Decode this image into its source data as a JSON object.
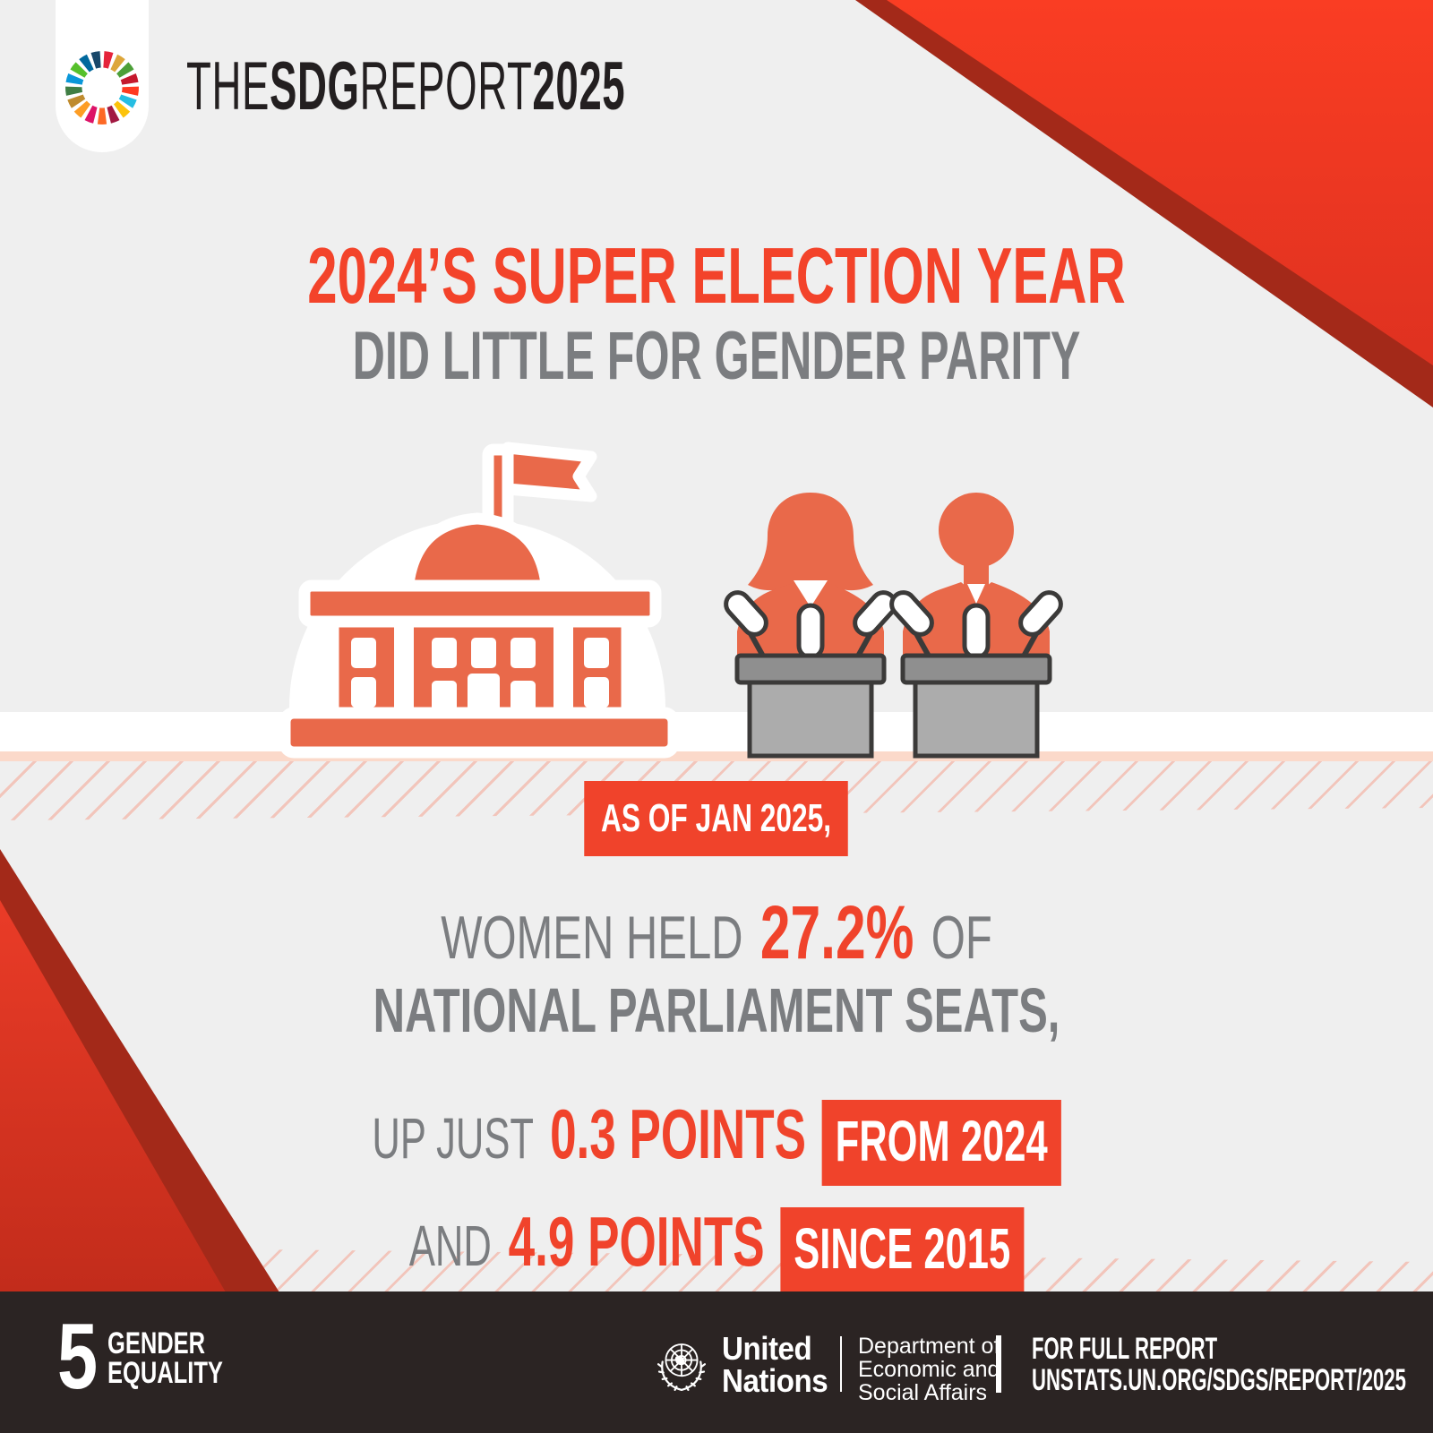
{
  "colors": {
    "accent": "#F0432B",
    "title_red": "#F3432A",
    "gray": "#7B7D80",
    "orange": "#E9694A",
    "bar": "#2B2423",
    "maroon": "#A32919",
    "podium_top": "#8F8F8F",
    "podium_body": "#ACACAC",
    "podium_outline": "#3B3A39",
    "pink_strip": "#FBD9CA",
    "hatch_line": "#F2C5BB",
    "background": "#EFEFEF"
  },
  "logo": {
    "brand_the": "THE",
    "brand_sdg": "SDG",
    "brand_report": "REPORT",
    "brand_year": "2025",
    "sdg_wheel_colors": [
      "#E5243B",
      "#DDA63A",
      "#4C9F38",
      "#C5192D",
      "#FF3A21",
      "#26BDE2",
      "#FCC30B",
      "#A21942",
      "#FD6925",
      "#DD1367",
      "#FD9D24",
      "#BF8B2E",
      "#3F7E44",
      "#0A97D9",
      "#56C02B",
      "#00689D",
      "#19486A"
    ]
  },
  "title": {
    "line1": "2024’S SUPER ELECTION YEAR",
    "line2": "DID LITTLE FOR GENDER PARITY"
  },
  "badge": {
    "as_of": "AS OF JAN 2025,"
  },
  "stats": {
    "line1_pre": "WOMEN HELD",
    "line1_value": "27.2%",
    "line1_post": "OF",
    "line2": "NATIONAL PARLIAMENT SEATS,",
    "line3_pre": "UP JUST",
    "line3_value": "0.3 POINTS",
    "line3_badge": "FROM 2024",
    "line4_pre": "AND",
    "line4_value": "4.9 POINTS",
    "line4_badge": "SINCE 2015"
  },
  "footer": {
    "goal_number": "5",
    "goal_name_line1": "GENDER",
    "goal_name_line2": "EQUALITY",
    "un_line1": "United",
    "un_line2": "Nations",
    "dept_line1": "Department of",
    "dept_line2": "Economic and",
    "dept_line3": "Social Affairs",
    "report_label": "FOR FULL REPORT",
    "report_url": "UNSTATS.UN.ORG/SDGS/REPORT/2025"
  }
}
